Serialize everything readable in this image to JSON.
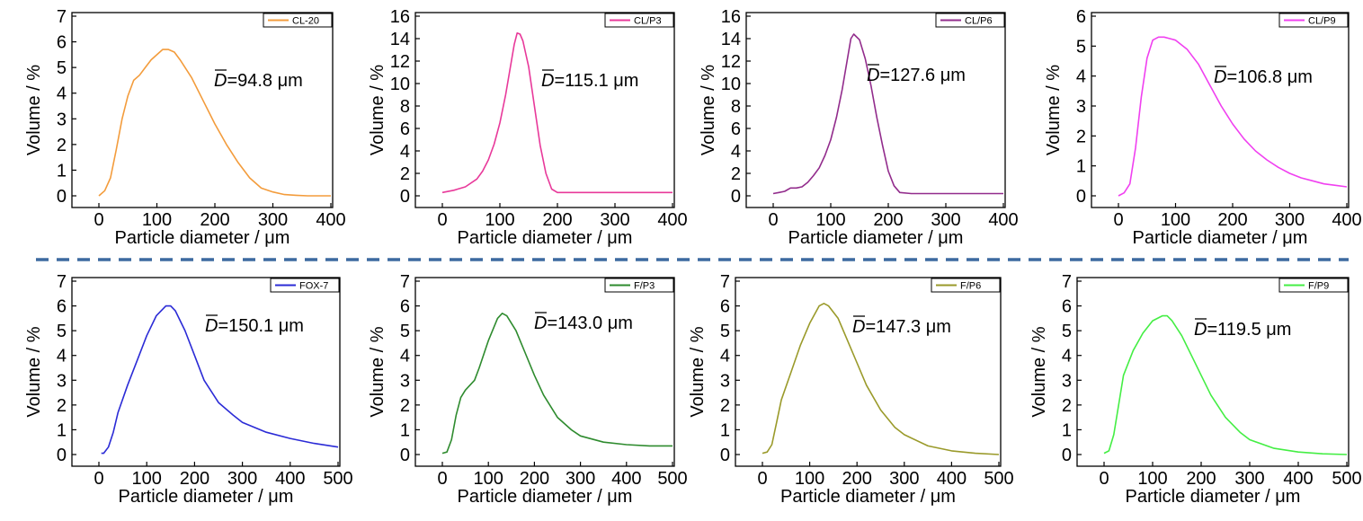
{
  "figure": {
    "separator_color": "#3d6aa0",
    "panel_count": 8
  },
  "chart_data": [
    {
      "type": "line",
      "xlabel": "Particle diameter / μm",
      "ylabel": "Volume / %",
      "xlim": [
        0,
        400
      ],
      "xticks": [
        0,
        100,
        200,
        300,
        400
      ],
      "ylim": [
        0,
        7
      ],
      "yticks": [
        0,
        1,
        2,
        3,
        4,
        5,
        6,
        7
      ],
      "legend_position": "top-right",
      "annotation": {
        "symbol": "D",
        "value": "=94.8 μm"
      },
      "series": [
        {
          "name": "CL-20",
          "color": "#f39c3c",
          "x": [
            0,
            10,
            20,
            30,
            40,
            50,
            60,
            70,
            80,
            90,
            100,
            110,
            120,
            130,
            140,
            160,
            180,
            200,
            220,
            240,
            260,
            280,
            300,
            320,
            340,
            360,
            380,
            400
          ],
          "y": [
            0.0,
            0.2,
            0.7,
            1.8,
            3.0,
            3.9,
            4.5,
            4.7,
            5.0,
            5.3,
            5.5,
            5.7,
            5.7,
            5.6,
            5.3,
            4.6,
            3.7,
            2.8,
            2.0,
            1.3,
            0.7,
            0.3,
            0.15,
            0.05,
            0.02,
            0.0,
            0.0,
            0.0
          ]
        }
      ]
    },
    {
      "type": "line",
      "xlabel": "Particle diameter / μm",
      "ylabel": "Volume / %",
      "xlim": [
        0,
        400
      ],
      "xticks": [
        0,
        100,
        200,
        300,
        400
      ],
      "ylim": [
        0,
        16
      ],
      "yticks": [
        0,
        2,
        4,
        6,
        8,
        10,
        12,
        14,
        16
      ],
      "legend_position": "top-right",
      "annotation": {
        "symbol": "D",
        "value": "=115.1 μm"
      },
      "series": [
        {
          "name": "CL/P3",
          "color": "#e8399a",
          "x": [
            0,
            20,
            40,
            60,
            70,
            80,
            90,
            100,
            110,
            120,
            125,
            130,
            135,
            140,
            150,
            160,
            170,
            180,
            190,
            200,
            220,
            250,
            300,
            350,
            400
          ],
          "y": [
            0.3,
            0.5,
            0.8,
            1.5,
            2.2,
            3.2,
            4.6,
            6.5,
            9.0,
            12.0,
            13.5,
            14.5,
            14.4,
            13.8,
            11.5,
            8.0,
            4.5,
            2.0,
            0.6,
            0.3,
            0.3,
            0.3,
            0.3,
            0.3,
            0.3
          ]
        }
      ]
    },
    {
      "type": "line",
      "xlabel": "Particle diameter / μm",
      "ylabel": "Volume / %",
      "xlim": [
        0,
        400
      ],
      "xticks": [
        0,
        100,
        200,
        300,
        400
      ],
      "ylim": [
        0,
        16
      ],
      "yticks": [
        0,
        2,
        4,
        6,
        8,
        10,
        12,
        14,
        16
      ],
      "legend_position": "top-right",
      "annotation": {
        "symbol": "D",
        "value": "=127.6 μm"
      },
      "series": [
        {
          "name": "CL/P6",
          "color": "#922c8c",
          "x": [
            0,
            10,
            20,
            30,
            40,
            50,
            60,
            70,
            80,
            90,
            100,
            110,
            120,
            130,
            135,
            140,
            150,
            160,
            170,
            180,
            190,
            200,
            210,
            220,
            240,
            300,
            350,
            400
          ],
          "y": [
            0.2,
            0.3,
            0.4,
            0.7,
            0.7,
            0.8,
            1.2,
            1.8,
            2.5,
            3.6,
            5.0,
            7.0,
            9.5,
            12.5,
            14.0,
            14.4,
            13.9,
            12.2,
            9.8,
            7.0,
            4.5,
            2.2,
            0.9,
            0.3,
            0.2,
            0.2,
            0.2,
            0.2
          ]
        }
      ]
    },
    {
      "type": "line",
      "xlabel": "Particle diameter / μm",
      "ylabel": "Volume / %",
      "xlim": [
        0,
        400
      ],
      "xticks": [
        0,
        100,
        200,
        300,
        400
      ],
      "ylim": [
        0,
        6
      ],
      "yticks": [
        0,
        1,
        2,
        3,
        4,
        5,
        6
      ],
      "legend_position": "top-right",
      "annotation": {
        "symbol": "D",
        "value": "=106.8 μm"
      },
      "series": [
        {
          "name": "CL/P9",
          "color": "#f040f0",
          "x": [
            0,
            10,
            20,
            30,
            40,
            50,
            60,
            70,
            80,
            90,
            100,
            120,
            140,
            160,
            180,
            200,
            220,
            240,
            260,
            280,
            300,
            320,
            340,
            360,
            380,
            400
          ],
          "y": [
            0.0,
            0.1,
            0.4,
            1.6,
            3.3,
            4.6,
            5.2,
            5.3,
            5.3,
            5.25,
            5.2,
            4.9,
            4.4,
            3.7,
            3.0,
            2.4,
            1.9,
            1.5,
            1.2,
            0.95,
            0.75,
            0.6,
            0.5,
            0.4,
            0.35,
            0.3
          ]
        }
      ]
    },
    {
      "type": "line",
      "xlabel": "Particle diameter / μm",
      "ylabel": "Volume / %",
      "xlim": [
        0,
        500
      ],
      "xticks": [
        0,
        100,
        200,
        300,
        400,
        500
      ],
      "ylim": [
        0,
        7
      ],
      "yticks": [
        0,
        1,
        2,
        3,
        4,
        5,
        6,
        7
      ],
      "legend_position": "top-right",
      "annotation": {
        "symbol": "D",
        "value": "=150.1 μm"
      },
      "series": [
        {
          "name": "FOX-7",
          "color": "#2b2bd6",
          "x": [
            5,
            10,
            20,
            30,
            40,
            60,
            80,
            100,
            120,
            140,
            150,
            160,
            180,
            200,
            220,
            250,
            280,
            300,
            350,
            400,
            450,
            500
          ],
          "y": [
            0.05,
            0.05,
            0.3,
            0.9,
            1.7,
            2.8,
            3.8,
            4.8,
            5.6,
            6.0,
            6.0,
            5.8,
            5.0,
            4.0,
            3.0,
            2.1,
            1.6,
            1.3,
            0.9,
            0.65,
            0.45,
            0.3
          ]
        }
      ]
    },
    {
      "type": "line",
      "xlabel": "Particle diameter / μm",
      "ylabel": "Volume / %",
      "xlim": [
        0,
        500
      ],
      "xticks": [
        0,
        100,
        200,
        300,
        400,
        500
      ],
      "ylim": [
        0,
        7
      ],
      "yticks": [
        0,
        1,
        2,
        3,
        4,
        5,
        6,
        7
      ],
      "legend_position": "top-right",
      "annotation": {
        "symbol": "D",
        "value": "=143.0 μm"
      },
      "series": [
        {
          "name": "F/P3",
          "color": "#2e8b2e",
          "x": [
            0,
            10,
            20,
            30,
            40,
            50,
            60,
            70,
            80,
            100,
            120,
            130,
            140,
            160,
            180,
            200,
            220,
            250,
            280,
            300,
            350,
            400,
            450,
            500
          ],
          "y": [
            0.05,
            0.1,
            0.6,
            1.6,
            2.3,
            2.6,
            2.8,
            3.0,
            3.5,
            4.6,
            5.5,
            5.7,
            5.6,
            5.0,
            4.1,
            3.2,
            2.4,
            1.5,
            1.0,
            0.75,
            0.5,
            0.4,
            0.35,
            0.35
          ]
        }
      ]
    },
    {
      "type": "line",
      "xlabel": "Particle diameter / μm",
      "ylabel": "Volume / %",
      "xlim": [
        0,
        500
      ],
      "xticks": [
        0,
        100,
        200,
        300,
        400,
        500
      ],
      "ylim": [
        0,
        7
      ],
      "yticks": [
        0,
        1,
        2,
        3,
        4,
        5,
        6,
        7
      ],
      "legend_position": "top-right",
      "annotation": {
        "symbol": "D",
        "value": "=147.3 μm"
      },
      "series": [
        {
          "name": "F/P6",
          "color": "#9a9a2a",
          "x": [
            0,
            10,
            20,
            30,
            40,
            60,
            80,
            100,
            120,
            130,
            140,
            160,
            180,
            200,
            220,
            250,
            280,
            300,
            350,
            400,
            450,
            500
          ],
          "y": [
            0.05,
            0.1,
            0.4,
            1.3,
            2.2,
            3.3,
            4.4,
            5.3,
            6.0,
            6.1,
            6.0,
            5.5,
            4.6,
            3.7,
            2.8,
            1.8,
            1.1,
            0.8,
            0.35,
            0.15,
            0.05,
            0.0
          ]
        }
      ]
    },
    {
      "type": "line",
      "xlabel": "Particle diameter / μm",
      "ylabel": "Volume / %",
      "xlim": [
        0,
        500
      ],
      "xticks": [
        0,
        100,
        200,
        300,
        400,
        500
      ],
      "ylim": [
        0,
        7
      ],
      "yticks": [
        0,
        1,
        2,
        3,
        4,
        5,
        6,
        7
      ],
      "legend_position": "top-right",
      "annotation": {
        "symbol": "D",
        "value": "=119.5 μm"
      },
      "series": [
        {
          "name": "F/P9",
          "color": "#44ee44",
          "x": [
            0,
            10,
            20,
            30,
            40,
            60,
            80,
            100,
            120,
            130,
            140,
            160,
            180,
            200,
            220,
            250,
            280,
            300,
            350,
            400,
            450,
            500
          ],
          "y": [
            0.05,
            0.15,
            0.8,
            2.0,
            3.2,
            4.2,
            4.9,
            5.4,
            5.6,
            5.6,
            5.4,
            4.8,
            4.0,
            3.2,
            2.4,
            1.5,
            0.9,
            0.6,
            0.25,
            0.1,
            0.03,
            0.0
          ]
        }
      ]
    }
  ]
}
